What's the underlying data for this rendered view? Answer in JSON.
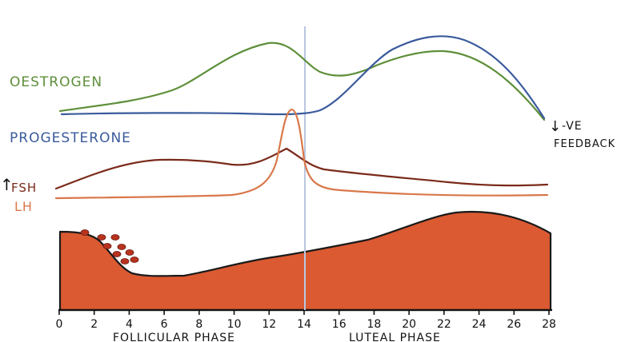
{
  "labels": {
    "oestrogen": "OESTROGEN",
    "progesterone": "PROGESTERONE",
    "fsh_arrow": "↑",
    "fsh": "FSH",
    "lh": "LH",
    "feedback_arrow": "↓",
    "feedback_line1": "-VE",
    "feedback_line2": "FEEDBACK",
    "follicular_phase": "FOLLICULAR PHASE",
    "luteal_phase": "LUTEAL PHASE"
  },
  "axis": {
    "ticks": [
      "0",
      "2",
      "4",
      "6",
      "8",
      "10",
      "12",
      "14",
      "16",
      "18",
      "20",
      "22",
      "24",
      "26",
      "28"
    ]
  },
  "colors": {
    "oestrogen": "#5e8f3a",
    "progesterone": "#3a5a9c",
    "fsh": "#7a2a1a",
    "lh": "#d9784a",
    "endometrium": "#db5a32",
    "follicles": "#b8331f",
    "divider": "#b9c7e0",
    "axis": "#111111"
  }
}
